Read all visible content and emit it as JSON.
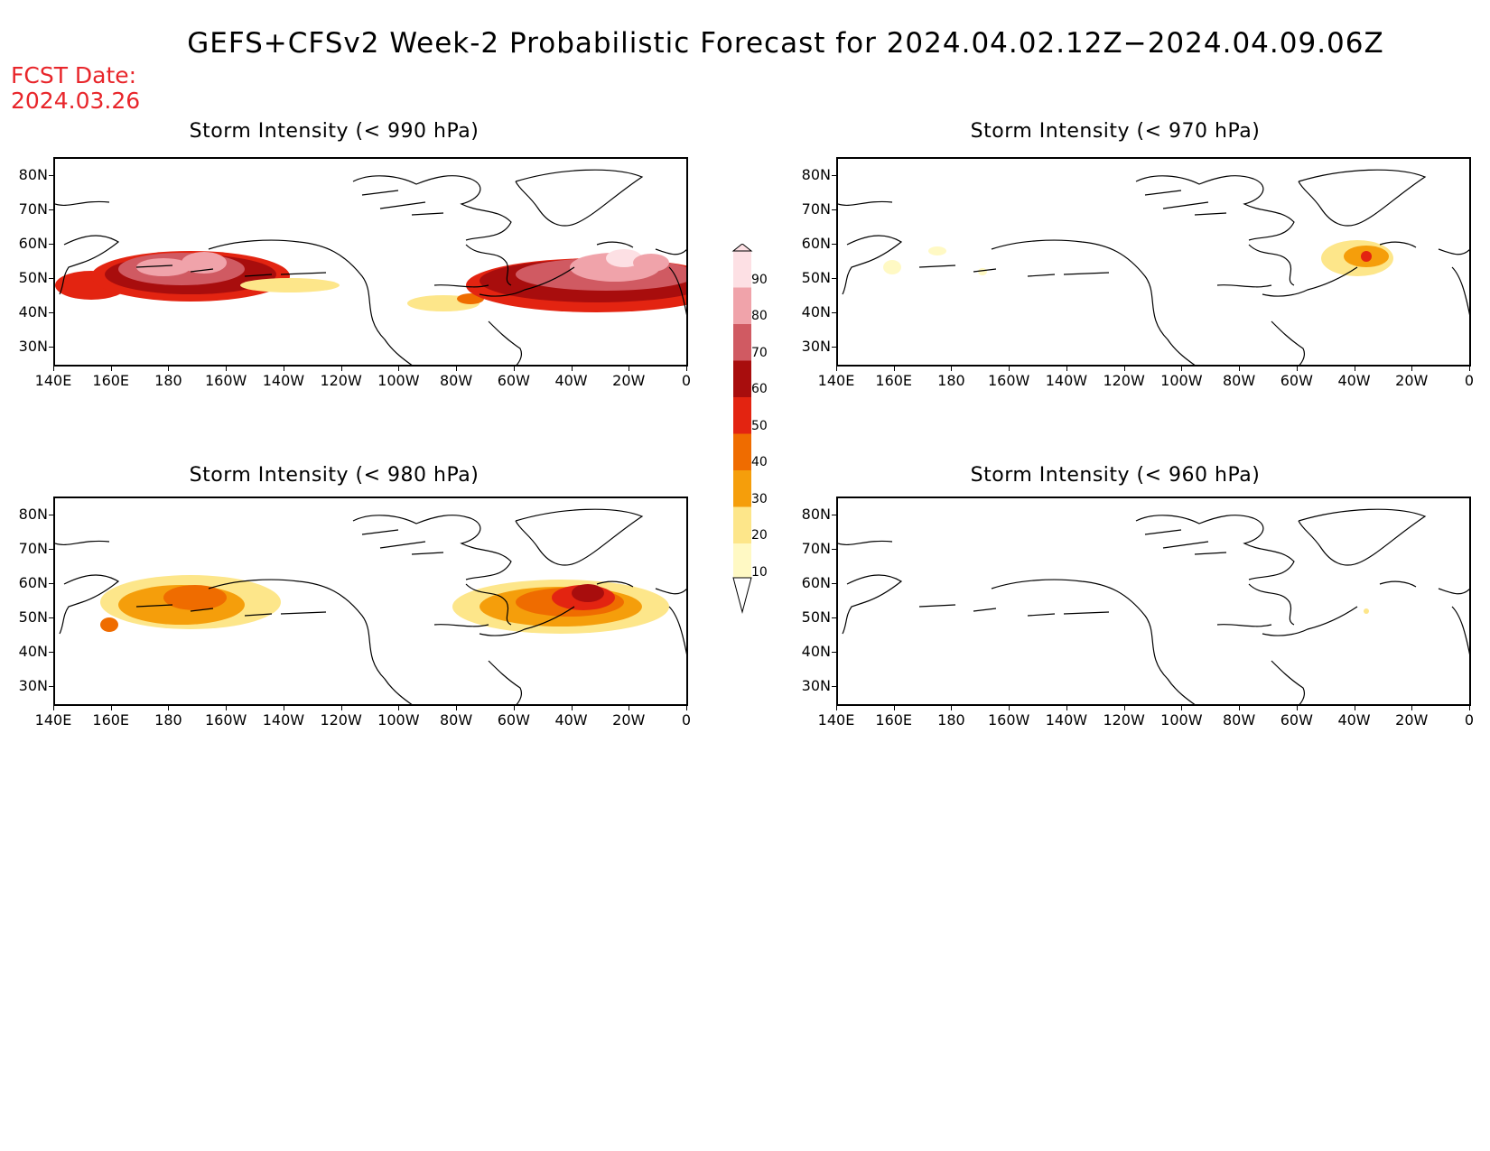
{
  "title": "GEFS+CFSv2 Week-2 Probabilistic Forecast for 2024.04.02.12Z−2024.04.09.06Z",
  "fcst_label": "FCST Date:",
  "fcst_date": "2024.03.26",
  "lat_labels": [
    "80N",
    "70N",
    "60N",
    "50N",
    "40N",
    "30N"
  ],
  "lon_labels": [
    "140E",
    "160E",
    "180",
    "160W",
    "140W",
    "120W",
    "100W",
    "80W",
    "60W",
    "40W",
    "20W",
    "0"
  ],
  "panels": [
    {
      "id": "p990",
      "title": "Storm Intensity (< 990 hPa)"
    },
    {
      "id": "p970",
      "title": "Storm Intensity (< 970 hPa)"
    },
    {
      "id": "p980",
      "title": "Storm Intensity (< 980 hPa)"
    },
    {
      "id": "p960",
      "title": "Storm Intensity (< 960 hPa)"
    }
  ],
  "colorbar": {
    "levels": [
      "10",
      "20",
      "30",
      "40",
      "50",
      "60",
      "70",
      "80",
      "90"
    ],
    "colors": [
      "#fff9c4",
      "#fde68a",
      "#f59e0b",
      "#ef6c00",
      "#e32411",
      "#a80d0d",
      "#d05a62",
      "#f0a3aa",
      "#fde0e4"
    ]
  }
}
